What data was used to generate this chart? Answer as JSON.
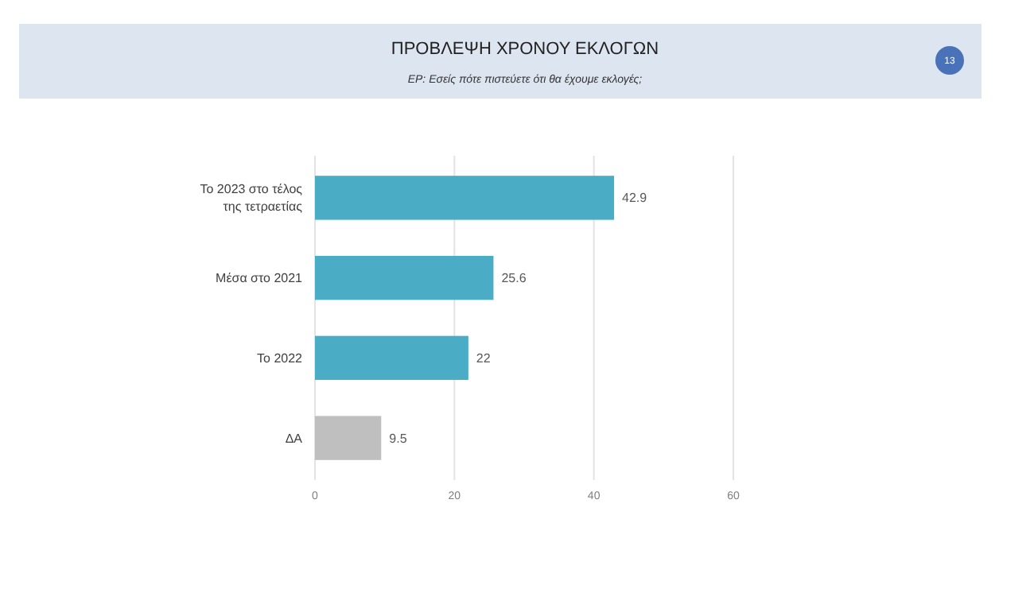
{
  "chart_data": {
    "type": "bar",
    "orientation": "horizontal",
    "title": "ΠΡΟΒΛΕΨΗ ΧΡΟΝΟΥ ΕΚΛΟΓΩΝ",
    "subtitle": "ΕΡ: Εσείς πότε πιστεύετε ότι θα έχουμε εκλογές;",
    "annotations": [
      "13"
    ],
    "categories": [
      "Το 2023 στο τέλος της τετραετίας",
      "Μέσα στο 2021",
      "Το 2022",
      "ΔΑ"
    ],
    "values": [
      42.9,
      25.6,
      22,
      9.5
    ],
    "colors": [
      "#4bacc6",
      "#4bacc6",
      "#4bacc6",
      "#bfbfbf"
    ],
    "xlim": [
      0,
      60
    ],
    "xticks": [
      0,
      20,
      40,
      60
    ],
    "grid": "x",
    "data_labels": true
  }
}
